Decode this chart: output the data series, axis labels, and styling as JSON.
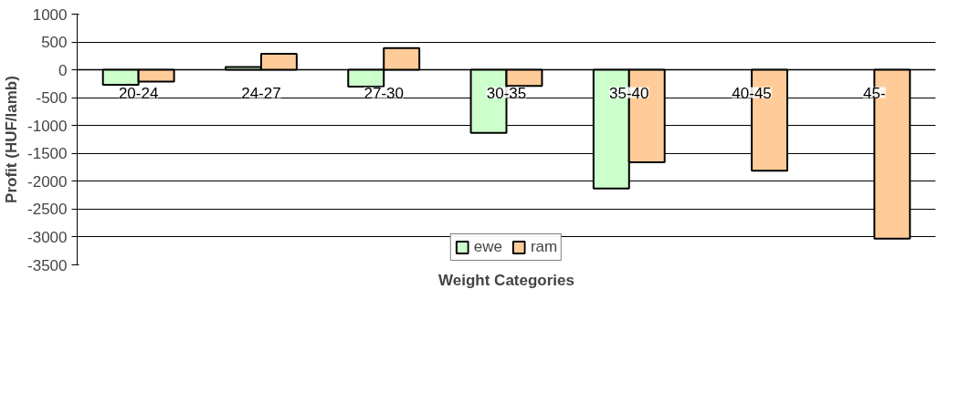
{
  "chart_data": {
    "type": "bar",
    "xlabel": "Weight Categories",
    "ylabel": "Profit (HUF/lamb)",
    "categories": [
      "20-24",
      "24-27",
      "27-30",
      "30-35",
      "35-40",
      "40-45",
      "45-"
    ],
    "series": [
      {
        "name": "ewe",
        "color": "#ccffcc",
        "values": [
          -270,
          50,
          -300,
          -1130,
          -2130,
          null,
          null
        ]
      },
      {
        "name": "ram",
        "color": "#ffcc99",
        "values": [
          -210,
          290,
          390,
          -290,
          -1660,
          -1810,
          -3030
        ]
      }
    ],
    "ylim": [
      -3500,
      1000
    ],
    "yticks": [
      -3500,
      -3000,
      -2500,
      -2000,
      -1500,
      -1000,
      -500,
      0,
      500,
      1000
    ],
    "grid": "y",
    "legend": "bottom"
  }
}
